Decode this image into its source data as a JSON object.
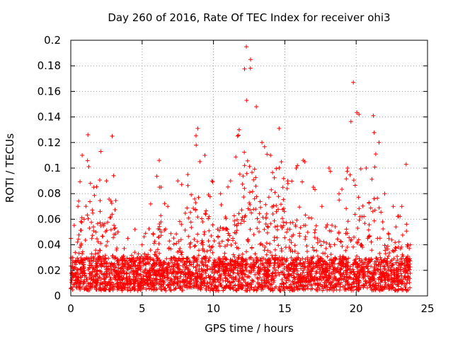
{
  "chart_data": {
    "type": "scatter",
    "title": "Day 260 of 2016, Rate Of TEC Index for receiver ohi3",
    "xlabel": "GPS time / hours",
    "ylabel": "ROTI / TECUs",
    "xlim": [
      0,
      25
    ],
    "ylim": [
      0,
      0.2
    ],
    "xticks": [
      "0",
      "5",
      "10",
      "15",
      "20",
      "25"
    ],
    "yticks": [
      "0",
      "0.02",
      "0.04",
      "0.06",
      "0.08",
      "0.1",
      "0.12",
      "0.14",
      "0.16",
      "0.18",
      "0.2"
    ],
    "grid": true,
    "marker": "+",
    "color": "#ff0000",
    "envelope": [
      {
        "x": 0.0,
        "y": 0.045
      },
      {
        "x": 0.5,
        "y": 0.07
      },
      {
        "x": 0.8,
        "y": 0.11
      },
      {
        "x": 1.2,
        "y": 0.126
      },
      {
        "x": 1.6,
        "y": 0.085
      },
      {
        "x": 2.1,
        "y": 0.113
      },
      {
        "x": 2.5,
        "y": 0.09
      },
      {
        "x": 2.9,
        "y": 0.125
      },
      {
        "x": 3.3,
        "y": 0.05
      },
      {
        "x": 4.0,
        "y": 0.045
      },
      {
        "x": 4.5,
        "y": 0.052
      },
      {
        "x": 5.0,
        "y": 0.04
      },
      {
        "x": 5.6,
        "y": 0.072
      },
      {
        "x": 6.2,
        "y": 0.106
      },
      {
        "x": 6.8,
        "y": 0.07
      },
      {
        "x": 7.5,
        "y": 0.09
      },
      {
        "x": 8.2,
        "y": 0.095
      },
      {
        "x": 8.9,
        "y": 0.131
      },
      {
        "x": 9.4,
        "y": 0.11
      },
      {
        "x": 9.9,
        "y": 0.09
      },
      {
        "x": 10.5,
        "y": 0.08
      },
      {
        "x": 11.2,
        "y": 0.09
      },
      {
        "x": 11.8,
        "y": 0.13
      },
      {
        "x": 12.3,
        "y": 0.195
      },
      {
        "x": 12.6,
        "y": 0.185
      },
      {
        "x": 13.0,
        "y": 0.148
      },
      {
        "x": 13.4,
        "y": 0.12
      },
      {
        "x": 14.0,
        "y": 0.11
      },
      {
        "x": 14.6,
        "y": 0.131
      },
      {
        "x": 15.2,
        "y": 0.09
      },
      {
        "x": 15.8,
        "y": 0.1
      },
      {
        "x": 16.4,
        "y": 0.105
      },
      {
        "x": 17.0,
        "y": 0.085
      },
      {
        "x": 17.6,
        "y": 0.07
      },
      {
        "x": 18.1,
        "y": 0.1
      },
      {
        "x": 18.8,
        "y": 0.08
      },
      {
        "x": 19.4,
        "y": 0.1
      },
      {
        "x": 19.8,
        "y": 0.167
      },
      {
        "x": 20.2,
        "y": 0.142
      },
      {
        "x": 20.7,
        "y": 0.1
      },
      {
        "x": 21.2,
        "y": 0.141
      },
      {
        "x": 21.6,
        "y": 0.12
      },
      {
        "x": 22.0,
        "y": 0.08
      },
      {
        "x": 22.6,
        "y": 0.07
      },
      {
        "x": 23.2,
        "y": 0.07
      },
      {
        "x": 23.5,
        "y": 0.103
      },
      {
        "x": 23.8,
        "y": 0.04
      }
    ],
    "n_points": 3200,
    "seed": 260
  }
}
